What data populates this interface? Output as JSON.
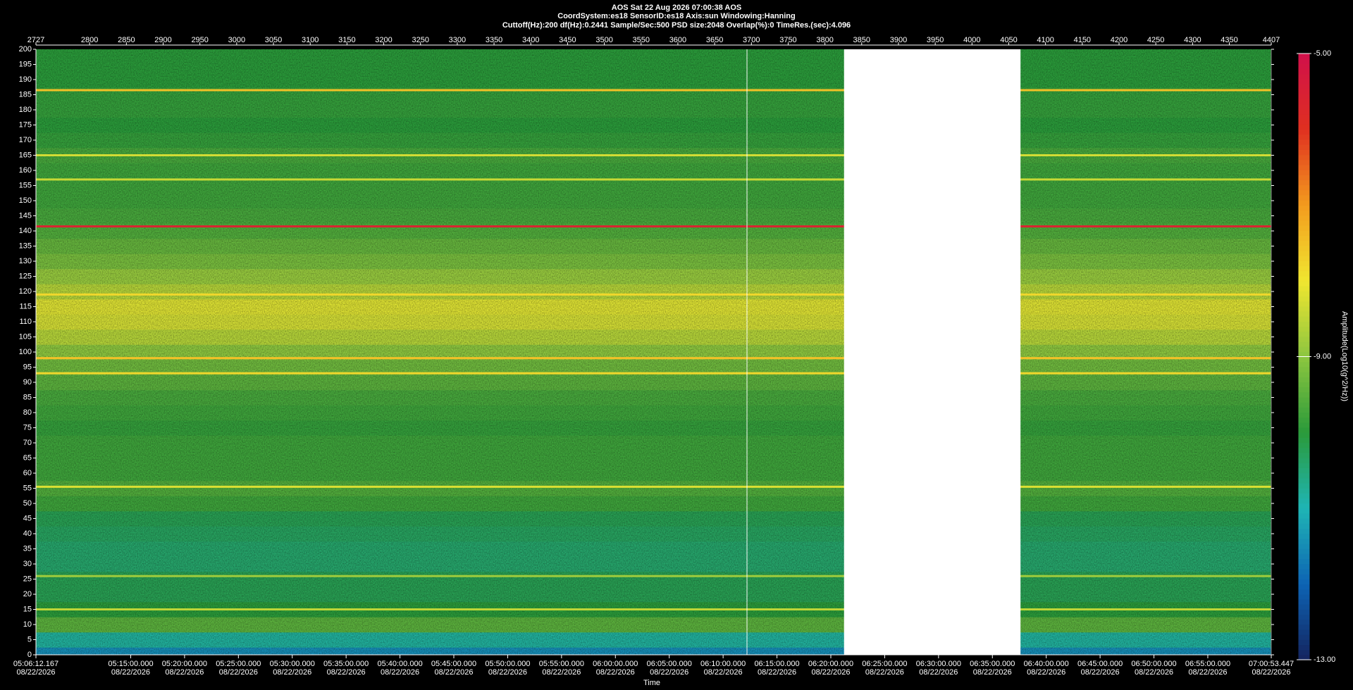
{
  "chart_data": {
    "type": "spectrogram",
    "title": "AOS  Sat 22 Aug 2026 07:00:38  AOS",
    "info_lines": [
      "CoordSystem:es18   SensorID:es18   Axis:sun   Windowing:Hanning",
      "Cuttoff(Hz):200      df(Hz):0.2441      Sample/Sec:500      PSD size:2048      Overlap(%):0      TimeRes.(sec):4.096"
    ],
    "x_label": "Time",
    "index_lim": [
      2727,
      4407
    ],
    "index_ticks": [
      2727,
      2800,
      2850,
      2900,
      2950,
      3000,
      3050,
      3100,
      3150,
      3200,
      3250,
      3300,
      3350,
      3400,
      3450,
      3500,
      3550,
      3600,
      3650,
      3700,
      3750,
      3800,
      3850,
      3900,
      3950,
      4000,
      4050,
      4100,
      4150,
      4200,
      4250,
      4300,
      4350,
      4407
    ],
    "xlim": [
      18372.167,
      25253.447
    ],
    "xticks": [
      {
        "value": 18372.167,
        "label": "05:06:12.167"
      },
      {
        "value": 18900,
        "label": "05:15:00.000"
      },
      {
        "value": 19200,
        "label": "05:20:00.000"
      },
      {
        "value": 19500,
        "label": "05:25:00.000"
      },
      {
        "value": 19800,
        "label": "05:30:00.000"
      },
      {
        "value": 20100,
        "label": "05:35:00.000"
      },
      {
        "value": 20400,
        "label": "05:40:00.000"
      },
      {
        "value": 20700,
        "label": "05:45:00.000"
      },
      {
        "value": 21000,
        "label": "05:50:00.000"
      },
      {
        "value": 21300,
        "label": "05:55:00.000"
      },
      {
        "value": 21600,
        "label": "06:00:00.000"
      },
      {
        "value": 21900,
        "label": "06:05:00.000"
      },
      {
        "value": 22200,
        "label": "06:10:00.000"
      },
      {
        "value": 22500,
        "label": "06:15:00.000"
      },
      {
        "value": 22800,
        "label": "06:20:00.000"
      },
      {
        "value": 23100,
        "label": "06:25:00.000"
      },
      {
        "value": 23400,
        "label": "06:30:00.000"
      },
      {
        "value": 23700,
        "label": "06:35:00.000"
      },
      {
        "value": 24000,
        "label": "06:40:00.000"
      },
      {
        "value": 24300,
        "label": "06:45:00.000"
      },
      {
        "value": 24600,
        "label": "06:50:00.000"
      },
      {
        "value": 24900,
        "label": "06:55:00.000"
      },
      {
        "value": 25253.447,
        "label": "07:00:53.447"
      }
    ],
    "xtick_dates": [
      "08/22/2026",
      "08/22/2026",
      "08/22/2026",
      "08/22/2026",
      "08/22/2026",
      "08/22/2026",
      "08/22/2026",
      "08/22/2026",
      "08/22/2026",
      "08/22/2026",
      "08/22/2026",
      "08/22/2026",
      "08/22/2026",
      "08/22/2026",
      "08/22/2026",
      "08/22/2026",
      "08/22/2026",
      "08/22/2026",
      "08/22/2026",
      "08/22/2026",
      "08/22/2026",
      "08/22/2026",
      "08/22/2026"
    ],
    "ylim": [
      0,
      200
    ],
    "yticks": [
      0,
      5,
      10,
      15,
      20,
      25,
      30,
      35,
      40,
      45,
      50,
      55,
      60,
      65,
      70,
      75,
      80,
      85,
      90,
      95,
      100,
      105,
      110,
      115,
      120,
      125,
      130,
      135,
      140,
      145,
      150,
      155,
      160,
      165,
      170,
      175,
      180,
      185,
      190,
      195,
      200
    ],
    "colorbar_label": "Amplitude(Log10(g^2/Hz))",
    "clim": [
      -13,
      -5
    ],
    "cticks": [
      {
        "value": -5,
        "label": "-5.00"
      },
      {
        "value": -9,
        "label": "-9.00"
      },
      {
        "value": -13,
        "label": "-13.00"
      }
    ],
    "colormap": [
      "#14245e",
      "#0d63b4",
      "#1fb5b5",
      "#2a9a3a",
      "#8cc63f",
      "#f0e630",
      "#f39c1e",
      "#e03020",
      "#d0104a"
    ],
    "profile": {
      "frequencies": [
        0,
        5,
        10,
        15,
        20,
        25,
        30,
        35,
        40,
        45,
        50,
        55,
        60,
        65,
        70,
        75,
        80,
        85,
        90,
        95,
        100,
        105,
        110,
        115,
        120,
        125,
        130,
        135,
        140,
        145,
        150,
        155,
        160,
        165,
        170,
        175,
        180,
        185,
        190,
        195,
        200
      ],
      "amplitude": [
        -11.5,
        -10.8,
        -9.5,
        -10.0,
        -10.2,
        -10.2,
        -10.4,
        -10.4,
        -10.3,
        -10.2,
        -9.8,
        -9.6,
        -9.8,
        -9.8,
        -9.8,
        -9.9,
        -9.8,
        -9.7,
        -9.5,
        -9.3,
        -9.0,
        -8.6,
        -8.3,
        -8.2,
        -8.6,
        -8.9,
        -9.2,
        -9.4,
        -9.6,
        -9.7,
        -9.8,
        -9.8,
        -9.8,
        -9.7,
        -9.9,
        -10.0,
        -9.9,
        -9.9,
        -10.0,
        -10.0,
        -10.0
      ]
    },
    "tonal_lines": {
      "frequencies": [
        141.5,
        186.5,
        119,
        98,
        93,
        55.5,
        165,
        157,
        26,
        15
      ],
      "amplitude": [
        -5.6,
        -7.5,
        -7.8,
        -7.5,
        -7.8,
        -8.2,
        -8.3,
        -8.4,
        -8.8,
        -8.5
      ]
    },
    "gap": [
      3826,
      4066
    ],
    "cursor_index": 3694
  }
}
